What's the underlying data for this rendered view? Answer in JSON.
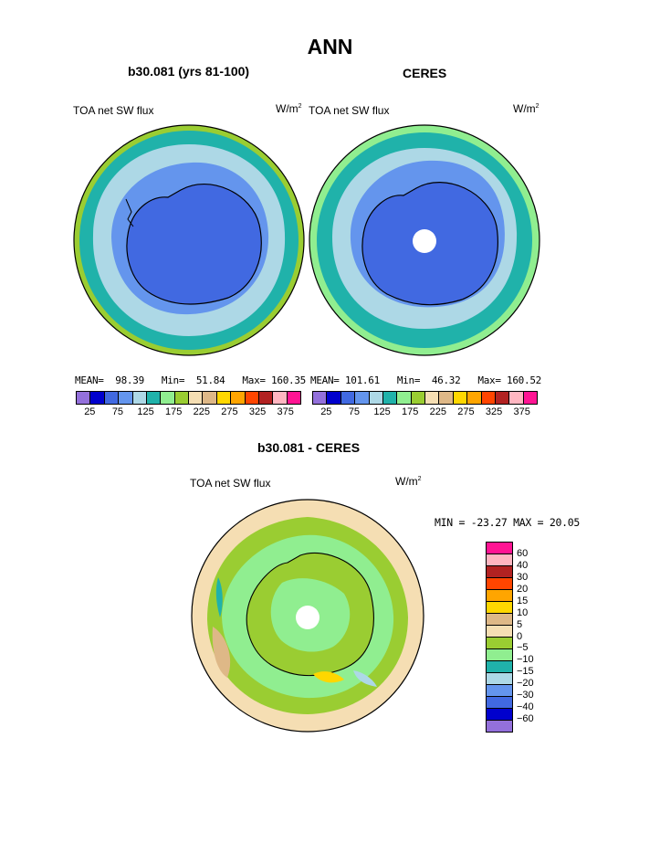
{
  "page": {
    "title": "ANN"
  },
  "panels": [
    {
      "subtitle": "b30.081 (yrs 81-100)",
      "variable": "TOA net SW flux",
      "units": "W/m",
      "units_sup": "2",
      "mean_label": "MEAN=",
      "mean": "98.39",
      "min_label": "Min=",
      "min": "51.84",
      "max_label": "Max=",
      "max": "160.35"
    },
    {
      "subtitle": "CERES",
      "variable": "TOA net SW flux",
      "units": "W/m",
      "units_sup": "2",
      "mean_label": "MEAN=",
      "mean": "101.61",
      "min_label": "Min=",
      "min": "46.32",
      "max_label": "Max=",
      "max": "160.52"
    }
  ],
  "abs_colorbar": {
    "colors": [
      "#9370db",
      "#0000cd",
      "#4169e1",
      "#6495ed",
      "#add8e6",
      "#20b2aa",
      "#90ee90",
      "#9acd32",
      "#f5deb3",
      "#deb887",
      "#ffd700",
      "#ffa500",
      "#ff4500",
      "#b22222",
      "#ffb6c1",
      "#ff1493"
    ],
    "tick_labels": [
      "25",
      "75",
      "125",
      "175",
      "225",
      "275",
      "325",
      "375"
    ]
  },
  "diff": {
    "subtitle": "b30.081 - CERES",
    "variable": "TOA net SW flux",
    "units": "W/m",
    "units_sup": "2",
    "minmax": "MIN = -23.27 MAX =  20.05",
    "colors": [
      "#ff1493",
      "#ffb6c1",
      "#b22222",
      "#ff4500",
      "#ffa500",
      "#ffd700",
      "#deb887",
      "#f5deb3",
      "#9acd32",
      "#90ee90",
      "#20b2aa",
      "#add8e6",
      "#6495ed",
      "#4169e1",
      "#0000cd",
      "#9370db"
    ],
    "tick_labels": [
      "60",
      "40",
      "30",
      "20",
      "15",
      "10",
      "5",
      "0",
      "−5",
      "−10",
      "−15",
      "−20",
      "−30",
      "−40",
      "−60"
    ]
  },
  "map_colors": {
    "outer": "#20b2aa",
    "ring_light": "#add8e6",
    "ring_mid": "#6495ed",
    "inner": "#4169e1",
    "edge_green": "#9acd32",
    "edge_lightgreen": "#90ee90",
    "diff_base": "#90ee90",
    "diff_olive": "#9acd32",
    "diff_tan": "#f5deb3",
    "diff_brown": "#deb887"
  }
}
